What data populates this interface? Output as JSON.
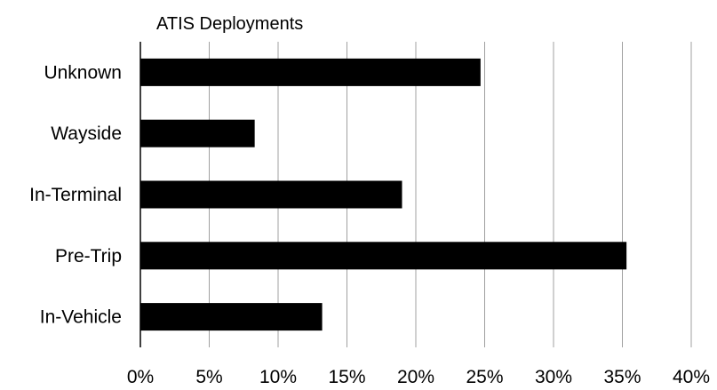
{
  "chart_data": {
    "type": "bar",
    "orientation": "horizontal",
    "title": "ATIS Deployments",
    "categories": [
      "Unknown",
      "Wayside",
      "In-Terminal",
      "Pre-Trip",
      "In-Vehicle"
    ],
    "values": [
      24.7,
      8.3,
      19.0,
      35.3,
      13.2
    ],
    "x_unit": "%",
    "xlim": [
      0,
      40
    ],
    "x_ticks": [
      0,
      5,
      10,
      15,
      20,
      25,
      30,
      35,
      40
    ],
    "x_tick_labels": [
      "0%",
      "5%",
      "10%",
      "15%",
      "20%",
      "25%",
      "30%",
      "35%",
      "40%"
    ],
    "xlabel": "",
    "ylabel": "",
    "grid": "vertical",
    "legend": "none",
    "bar_color": "#000000",
    "grid_color": "#a0a0a0"
  }
}
